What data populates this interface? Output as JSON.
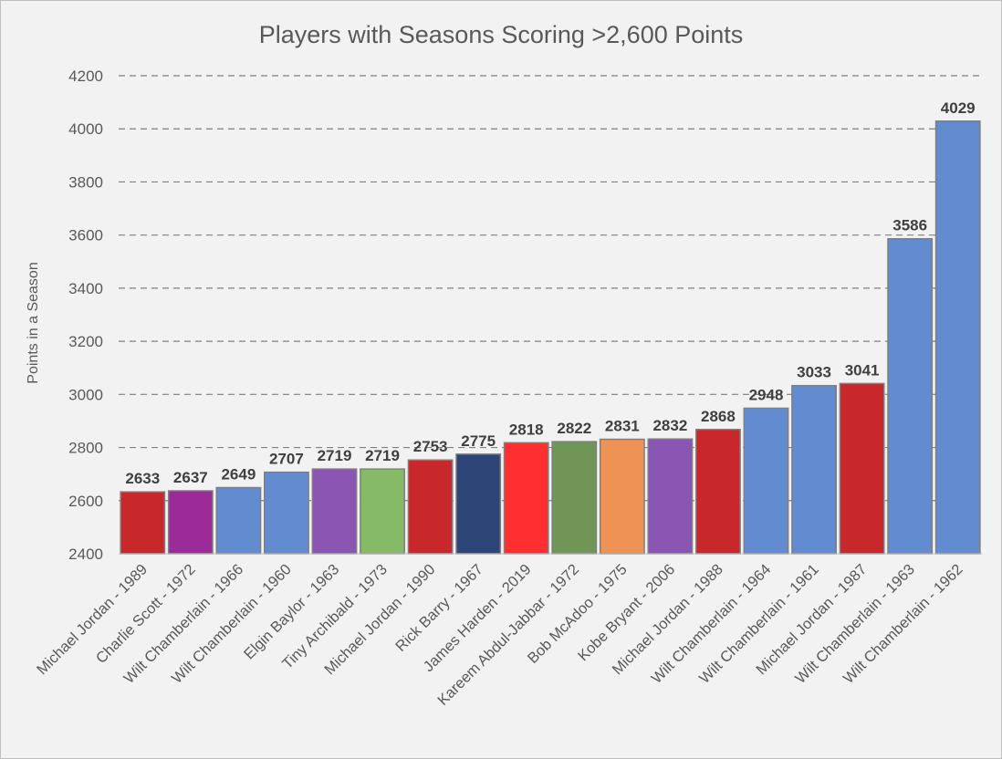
{
  "chart_data": {
    "type": "bar",
    "title": "Players with Seasons Scoring >2,600 Points",
    "xlabel": "",
    "ylabel": "Points in a Season",
    "ylim": [
      2400,
      4200
    ],
    "yticks": [
      2400,
      2600,
      2800,
      3000,
      3200,
      3400,
      3600,
      3800,
      4000,
      4200
    ],
    "grid": true,
    "categories": [
      "Michael Jordan - 1989",
      "Charlie Scott - 1972",
      "Wilt Chamberlain - 1966",
      "Wilt Chamberlain - 1960",
      "Elgin Baylor - 1963",
      "Tiny Archibald - 1973",
      "Michael Jordan - 1990",
      "Rick Barry - 1967",
      "James Harden - 2019",
      "Kareem Abdul-Jabbar - 1972",
      "Bob McAdoo - 1975",
      "Kobe Bryant - 2006",
      "Michael Jordan - 1988",
      "Wilt Chamberlain - 1964",
      "Wilt Chamberlain - 1961",
      "Michael Jordan - 1987",
      "Wilt Chamberlain - 1963",
      "Wilt Chamberlain - 1962"
    ],
    "values": [
      2633,
      2637,
      2649,
      2707,
      2719,
      2719,
      2753,
      2775,
      2818,
      2822,
      2831,
      2832,
      2868,
      2948,
      3033,
      3041,
      3586,
      4029
    ],
    "colors": [
      "#c8282c",
      "#9b2b98",
      "#628bd0",
      "#628bd0",
      "#8b55b3",
      "#87ba66",
      "#c8282c",
      "#2e4677",
      "#ff2f31",
      "#6f9656",
      "#ef9256",
      "#8b55b3",
      "#c8282c",
      "#628bd0",
      "#628bd0",
      "#c8282c",
      "#628bd0",
      "#628bd0"
    ]
  }
}
